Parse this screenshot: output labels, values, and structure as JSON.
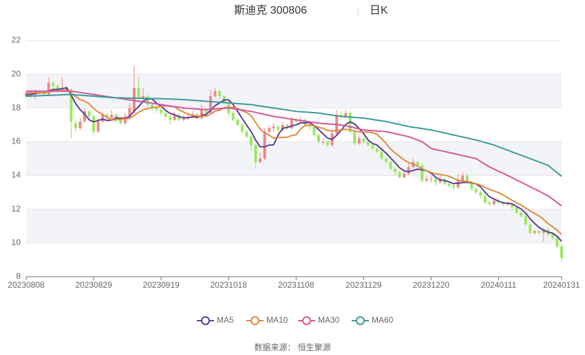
{
  "chart_data": {
    "type": "candlestick",
    "title": "斯迪克 300806",
    "subtitle": "日K",
    "source": "数据来源： 恒生聚源",
    "up_color": "#f08686",
    "down_color": "#98e85e",
    "grid": true,
    "legend": "bottom",
    "ylim": [
      8,
      22
    ],
    "yticks": [
      8,
      10,
      12,
      14,
      16,
      18,
      20,
      22
    ],
    "categories": [
      "20230808",
      null,
      null,
      null,
      null,
      null,
      null,
      null,
      null,
      null,
      null,
      null,
      null,
      null,
      null,
      "20230829",
      null,
      null,
      null,
      null,
      null,
      null,
      null,
      null,
      null,
      null,
      null,
      null,
      null,
      null,
      "20230919",
      null,
      null,
      null,
      null,
      null,
      null,
      null,
      null,
      null,
      null,
      null,
      null,
      null,
      null,
      "20231018",
      null,
      null,
      null,
      null,
      null,
      null,
      null,
      null,
      null,
      null,
      null,
      null,
      null,
      null,
      "20231108",
      null,
      null,
      null,
      null,
      null,
      null,
      null,
      null,
      null,
      null,
      null,
      null,
      null,
      null,
      "20231129",
      null,
      null,
      null,
      null,
      null,
      null,
      null,
      null,
      null,
      null,
      null,
      null,
      null,
      null,
      "20231220",
      null,
      null,
      null,
      null,
      null,
      null,
      null,
      null,
      null,
      null,
      null,
      null,
      null,
      null,
      "20240111",
      null,
      null,
      null,
      null,
      null,
      null,
      null,
      null,
      null,
      null,
      null,
      null,
      null,
      "20240131"
    ],
    "candles": [
      [
        18.7,
        18.9,
        18.6,
        19.0
      ],
      [
        18.9,
        18.8,
        18.6,
        19.0
      ],
      [
        18.8,
        19.0,
        18.5,
        19.1
      ],
      [
        19.0,
        18.9,
        18.8,
        19.1
      ],
      [
        18.9,
        18.8,
        18.7,
        19.0
      ],
      [
        18.8,
        19.5,
        18.7,
        19.8
      ],
      [
        19.5,
        19.3,
        19.1,
        19.6
      ],
      [
        19.3,
        19.0,
        18.9,
        19.4
      ],
      [
        19.0,
        19.1,
        18.9,
        19.8
      ],
      [
        19.1,
        19.2,
        19.0,
        19.3
      ],
      [
        19.1,
        17.2,
        16.2,
        19.2
      ],
      [
        17.1,
        16.8,
        16.6,
        17.3
      ],
      [
        16.8,
        17.2,
        16.7,
        17.4
      ],
      [
        17.2,
        17.8,
        17.1,
        18.0
      ],
      [
        17.8,
        17.5,
        17.3,
        17.9
      ],
      [
        17.5,
        16.6,
        16.4,
        17.6
      ],
      [
        16.6,
        17.2,
        16.5,
        17.4
      ],
      [
        17.2,
        17.6,
        17.1,
        17.8
      ],
      [
        17.6,
        17.4,
        17.2,
        17.7
      ],
      [
        17.4,
        17.6,
        17.3,
        17.9
      ],
      [
        17.6,
        17.3,
        17.1,
        17.7
      ],
      [
        17.3,
        17.1,
        17.0,
        17.4
      ],
      [
        17.1,
        17.5,
        17.0,
        17.7
      ],
      [
        17.5,
        18.0,
        17.4,
        18.3
      ],
      [
        17.8,
        19.2,
        17.7,
        20.5
      ],
      [
        19.2,
        18.6,
        18.3,
        19.8
      ],
      [
        18.6,
        18.7,
        18.4,
        19.2
      ],
      [
        18.7,
        18.2,
        18.0,
        18.8
      ],
      [
        18.2,
        18.0,
        17.8,
        18.3
      ],
      [
        18.0,
        17.9,
        17.7,
        18.1
      ],
      [
        17.9,
        17.7,
        17.5,
        18.0
      ],
      [
        17.7,
        17.5,
        17.4,
        17.8
      ],
      [
        17.5,
        17.3,
        17.0,
        17.6
      ],
      [
        17.3,
        17.6,
        17.2,
        17.8
      ],
      [
        17.6,
        17.3,
        17.2,
        17.7
      ],
      [
        17.3,
        17.4,
        17.2,
        17.6
      ],
      [
        17.4,
        17.5,
        17.3,
        17.7
      ],
      [
        17.5,
        17.6,
        17.4,
        17.8
      ],
      [
        17.6,
        17.4,
        17.3,
        17.7
      ],
      [
        17.4,
        17.9,
        17.3,
        18.2
      ],
      [
        17.9,
        17.7,
        17.6,
        18.0
      ],
      [
        17.7,
        18.7,
        17.6,
        19.1
      ],
      [
        18.7,
        19.0,
        18.6,
        19.2
      ],
      [
        19.0,
        18.7,
        18.5,
        19.1
      ],
      [
        18.7,
        18.3,
        18.2,
        18.8
      ],
      [
        18.3,
        17.7,
        17.5,
        18.4
      ],
      [
        17.7,
        17.3,
        17.2,
        17.8
      ],
      [
        17.3,
        17.0,
        16.9,
        17.4
      ],
      [
        17.0,
        16.6,
        16.5,
        17.1
      ],
      [
        16.6,
        16.3,
        16.2,
        16.7
      ],
      [
        16.3,
        15.8,
        15.5,
        16.4
      ],
      [
        15.8,
        14.8,
        14.4,
        15.9
      ],
      [
        14.8,
        15.0,
        14.7,
        15.3
      ],
      [
        15.0,
        16.6,
        14.9,
        16.8
      ],
      [
        16.6,
        16.8,
        16.5,
        17.0
      ],
      [
        16.8,
        16.9,
        16.6,
        17.1
      ],
      [
        16.9,
        16.7,
        16.6,
        17.0
      ],
      [
        16.7,
        17.0,
        16.6,
        17.2
      ],
      [
        17.0,
        16.8,
        16.7,
        17.1
      ],
      [
        16.8,
        17.3,
        16.7,
        17.5
      ],
      [
        17.3,
        17.2,
        17.1,
        17.4
      ],
      [
        17.2,
        17.3,
        17.1,
        17.5
      ],
      [
        17.3,
        17.0,
        16.9,
        17.4
      ],
      [
        17.0,
        16.9,
        16.7,
        17.1
      ],
      [
        16.9,
        16.4,
        16.3,
        17.0
      ],
      [
        16.4,
        16.0,
        15.9,
        16.5
      ],
      [
        16.0,
        16.0,
        15.8,
        16.2
      ],
      [
        16.0,
        15.8,
        15.7,
        16.1
      ],
      [
        15.8,
        16.5,
        15.7,
        16.7
      ],
      [
        16.5,
        17.6,
        16.4,
        17.9
      ],
      [
        17.6,
        17.5,
        17.3,
        17.8
      ],
      [
        17.5,
        17.7,
        17.4,
        17.9
      ],
      [
        17.7,
        16.6,
        16.5,
        17.8
      ],
      [
        16.6,
        15.9,
        15.8,
        16.7
      ],
      [
        15.9,
        16.2,
        15.8,
        16.4
      ],
      [
        16.2,
        16.0,
        15.9,
        16.3
      ],
      [
        16.0,
        15.8,
        15.7,
        16.1
      ],
      [
        15.8,
        15.6,
        15.5,
        15.9
      ],
      [
        15.6,
        15.4,
        15.3,
        15.7
      ],
      [
        15.4,
        15.0,
        14.9,
        15.5
      ],
      [
        15.0,
        14.8,
        14.7,
        15.1
      ],
      [
        14.8,
        14.4,
        14.3,
        14.9
      ],
      [
        14.4,
        14.2,
        14.0,
        14.5
      ],
      [
        14.2,
        13.9,
        13.8,
        14.3
      ],
      [
        13.9,
        14.1,
        13.8,
        14.3
      ],
      [
        14.1,
        14.5,
        14.0,
        14.7
      ],
      [
        14.5,
        14.8,
        14.4,
        15.0
      ],
      [
        14.8,
        14.6,
        14.5,
        14.9
      ],
      [
        14.6,
        13.7,
        13.6,
        14.7
      ],
      [
        13.7,
        13.8,
        13.6,
        14.0
      ],
      [
        13.8,
        13.8,
        13.6,
        14.0
      ],
      [
        13.8,
        13.6,
        13.4,
        13.9
      ],
      [
        13.6,
        13.8,
        13.5,
        14.0
      ],
      [
        13.8,
        13.5,
        13.4,
        13.9
      ],
      [
        13.5,
        13.4,
        13.3,
        13.6
      ],
      [
        13.4,
        13.3,
        13.1,
        13.5
      ],
      [
        13.3,
        13.7,
        13.2,
        14.1
      ],
      [
        13.7,
        14.0,
        13.6,
        14.2
      ],
      [
        14.0,
        13.6,
        13.5,
        14.1
      ],
      [
        13.6,
        13.2,
        13.1,
        13.7
      ],
      [
        13.2,
        13.0,
        12.9,
        13.3
      ],
      [
        13.0,
        12.8,
        12.6,
        13.1
      ],
      [
        12.8,
        12.4,
        12.3,
        12.9
      ],
      [
        12.4,
        12.3,
        12.2,
        12.5
      ],
      [
        12.3,
        12.5,
        12.2,
        12.6
      ],
      [
        12.5,
        12.4,
        12.3,
        12.6
      ],
      [
        12.4,
        12.3,
        12.2,
        12.5
      ],
      [
        12.3,
        12.3,
        12.2,
        12.4
      ],
      [
        12.3,
        12.1,
        11.9,
        12.4
      ],
      [
        12.1,
        11.8,
        11.7,
        12.2
      ],
      [
        11.8,
        11.6,
        11.5,
        11.9
      ],
      [
        11.6,
        11.1,
        11.0,
        11.7
      ],
      [
        11.1,
        10.6,
        10.5,
        11.2
      ],
      [
        10.6,
        10.7,
        10.5,
        10.8
      ],
      [
        10.7,
        10.6,
        10.5,
        10.8
      ],
      [
        10.6,
        10.8,
        10.1,
        10.9
      ],
      [
        10.8,
        10.5,
        10.4,
        10.9
      ],
      [
        10.5,
        10.3,
        10.2,
        10.6
      ],
      [
        10.3,
        9.8,
        9.7,
        10.4
      ],
      [
        9.8,
        9.1,
        8.9,
        9.9
      ]
    ],
    "series": [
      {
        "name": "MA5",
        "color": "#5e3c99",
        "values": [
          18.8,
          18.8,
          18.85,
          18.9,
          18.9,
          19.0,
          19.1,
          19.1,
          19.15,
          19.2,
          18.76,
          18.26,
          17.9,
          17.64,
          17.3,
          17.18,
          17.26,
          17.34,
          17.26,
          17.28,
          17.42,
          17.4,
          17.38,
          17.5,
          17.82,
          18.08,
          18.4,
          18.54,
          18.54,
          18.28,
          18.1,
          17.86,
          17.68,
          17.6,
          17.48,
          17.42,
          17.42,
          17.48,
          17.44,
          17.56,
          17.62,
          17.86,
          18.14,
          18.3,
          18.48,
          18.48,
          18.2,
          17.8,
          17.38,
          16.98,
          16.6,
          16.1,
          15.7,
          15.7,
          15.8,
          15.82,
          16.4,
          16.8,
          16.84,
          16.94,
          17.0,
          17.12,
          17.12,
          17.14,
          16.96,
          16.72,
          16.46,
          16.22,
          16.14,
          16.38,
          16.68,
          17.02,
          17.18,
          17.06,
          16.78,
          16.48,
          16.1,
          15.9,
          15.8,
          15.56,
          15.32,
          15.04,
          14.76,
          14.46,
          14.28,
          14.22,
          14.3,
          14.38,
          14.34,
          14.28,
          14.14,
          13.9,
          13.74,
          13.7,
          13.62,
          13.52,
          13.54,
          13.58,
          13.6,
          13.56,
          13.5,
          13.32,
          13.0,
          12.74,
          12.6,
          12.48,
          12.38,
          12.36,
          12.32,
          12.16,
          12.02,
          11.78,
          11.44,
          11.16,
          10.92,
          10.76,
          10.64,
          10.58,
          10.4,
          10.1
        ]
      },
      {
        "name": "MA10",
        "color": "#e08a3c",
        "values": [
          18.9,
          18.9,
          18.9,
          18.9,
          18.9,
          18.95,
          19.0,
          19.0,
          19.05,
          19.05,
          18.88,
          18.68,
          18.5,
          18.4,
          18.25,
          17.97,
          17.76,
          17.62,
          17.45,
          17.29,
          17.3,
          17.33,
          17.36,
          17.38,
          17.55,
          17.75,
          17.9,
          17.96,
          18.02,
          18.05,
          18.09,
          18.13,
          18.11,
          18.07,
          17.88,
          17.76,
          17.64,
          17.58,
          17.52,
          17.52,
          17.52,
          17.64,
          17.81,
          17.87,
          18.02,
          18.05,
          18.03,
          17.97,
          17.84,
          17.73,
          17.54,
          17.15,
          16.75,
          16.54,
          16.39,
          16.21,
          16.25,
          16.25,
          16.27,
          16.37,
          16.41,
          16.76,
          16.96,
          16.99,
          16.95,
          16.86,
          16.79,
          16.67,
          16.64,
          16.67,
          16.7,
          16.74,
          16.7,
          16.64,
          16.58,
          16.58,
          16.56,
          16.54,
          16.43,
          16.17,
          15.9,
          15.57,
          15.33,
          15.13,
          14.92,
          14.77,
          14.67,
          14.57,
          14.4,
          14.28,
          14.18,
          14.1,
          14.06,
          14.02,
          13.95,
          13.83,
          13.72,
          13.66,
          13.65,
          13.59,
          13.51,
          13.43,
          13.29,
          13.17,
          13.08,
          12.99,
          12.85,
          12.68,
          12.53,
          12.38,
          12.25,
          12.07,
          11.91,
          11.76,
          11.6,
          11.39,
          11.15,
          10.96,
          10.76,
          10.5
        ]
      },
      {
        "name": "MA30",
        "color": "#d4569a",
        "values": [
          19.0,
          19.0,
          19.0,
          19.0,
          19.0,
          19.0,
          19.0,
          19.0,
          19.0,
          19.0,
          19.0,
          18.96,
          18.92,
          18.88,
          18.84,
          18.8,
          18.76,
          18.72,
          18.68,
          18.64,
          18.6,
          18.56,
          18.52,
          18.48,
          18.44,
          18.4,
          18.36,
          18.32,
          18.28,
          18.24,
          18.2,
          18.16,
          18.12,
          18.08,
          18.04,
          18.0,
          17.98,
          17.96,
          17.94,
          17.92,
          17.9,
          17.92,
          17.94,
          17.96,
          17.98,
          18.0,
          17.96,
          17.92,
          17.88,
          17.84,
          17.8,
          17.74,
          17.68,
          17.62,
          17.56,
          17.5,
          17.46,
          17.42,
          17.38,
          17.34,
          17.3,
          17.26,
          17.22,
          17.18,
          17.14,
          17.1,
          17.08,
          17.06,
          17.04,
          17.02,
          17.0,
          16.94,
          16.88,
          16.82,
          16.76,
          16.7,
          16.68,
          16.66,
          16.64,
          16.62,
          16.6,
          16.54,
          16.48,
          16.42,
          16.36,
          16.3,
          16.2,
          16.1,
          16.0,
          15.8,
          15.6,
          15.54,
          15.48,
          15.42,
          15.36,
          15.3,
          15.24,
          15.18,
          15.12,
          15.06,
          15.0,
          14.83,
          14.67,
          14.5,
          14.38,
          14.25,
          14.13,
          14.0,
          13.87,
          13.73,
          13.6,
          13.47,
          13.33,
          13.2,
          13.07,
          12.93,
          12.8,
          12.6,
          12.4,
          12.2
        ]
      },
      {
        "name": "MA60",
        "color": "#3a9a9a",
        "values": [
          18.7,
          18.71,
          18.72,
          18.73,
          18.74,
          18.75,
          18.76,
          18.77,
          18.78,
          18.79,
          18.8,
          18.78,
          18.76,
          18.74,
          18.72,
          18.7,
          18.68,
          18.66,
          18.64,
          18.62,
          18.6,
          18.6,
          18.59,
          18.59,
          18.58,
          18.58,
          18.57,
          18.57,
          18.56,
          18.56,
          18.55,
          18.54,
          18.53,
          18.52,
          18.51,
          18.5,
          18.48,
          18.46,
          18.44,
          18.42,
          18.4,
          18.38,
          18.36,
          18.34,
          18.32,
          18.3,
          18.28,
          18.26,
          18.24,
          18.22,
          18.2,
          18.16,
          18.12,
          18.08,
          18.04,
          18.0,
          17.96,
          17.92,
          17.88,
          17.84,
          17.8,
          17.78,
          17.76,
          17.74,
          17.72,
          17.7,
          17.66,
          17.62,
          17.58,
          17.54,
          17.5,
          17.48,
          17.46,
          17.44,
          17.42,
          17.4,
          17.36,
          17.32,
          17.28,
          17.24,
          17.2,
          17.14,
          17.08,
          17.02,
          16.96,
          16.9,
          16.86,
          16.82,
          16.78,
          16.74,
          16.7,
          16.64,
          16.58,
          16.52,
          16.46,
          16.4,
          16.34,
          16.28,
          16.22,
          16.16,
          16.1,
          16.03,
          15.95,
          15.88,
          15.8,
          15.7,
          15.6,
          15.5,
          15.4,
          15.3,
          15.2,
          15.1,
          15.0,
          14.9,
          14.8,
          14.7,
          14.6,
          14.38,
          14.17,
          13.95
        ]
      }
    ]
  }
}
